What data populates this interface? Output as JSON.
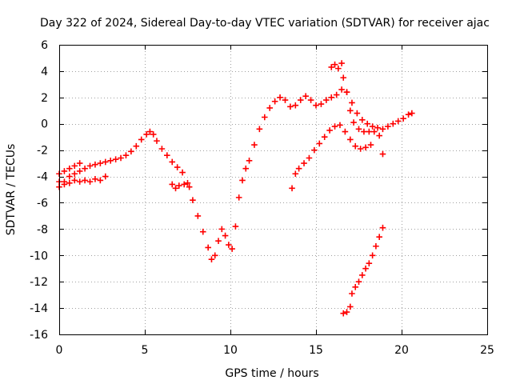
{
  "chart_data": {
    "type": "scatter",
    "title": "Day 322 of 2024, Sidereal Day-to-day VTEC variation (SDTVAR) for receiver ajac",
    "xlabel": "GPS time / hours",
    "ylabel": "SDTVAR / TECUs",
    "xlim": [
      0,
      25
    ],
    "ylim": [
      -16,
      6
    ],
    "xticks": [
      0,
      5,
      10,
      15,
      20,
      25
    ],
    "yticks": [
      -16,
      -14,
      -12,
      -10,
      -8,
      -6,
      -4,
      -2,
      0,
      2,
      4,
      6
    ],
    "grid": true,
    "marker": "+",
    "color": "#ff0000",
    "series": [
      {
        "points": [
          [
            0.0,
            -4.8
          ],
          [
            0.3,
            -4.4
          ],
          [
            0.6,
            -4.0
          ],
          [
            0.9,
            -3.8
          ],
          [
            1.2,
            -3.6
          ],
          [
            1.5,
            -3.4
          ],
          [
            1.8,
            -3.2
          ],
          [
            2.1,
            -3.1
          ],
          [
            2.4,
            -3.0
          ],
          [
            2.7,
            -2.9
          ],
          [
            3.0,
            -2.8
          ],
          [
            3.3,
            -2.7
          ],
          [
            3.6,
            -2.6
          ],
          [
            3.9,
            -2.4
          ],
          [
            4.2,
            -2.1
          ],
          [
            4.5,
            -1.7
          ],
          [
            4.8,
            -1.2
          ],
          [
            5.1,
            -0.8
          ],
          [
            5.3,
            -0.6
          ],
          [
            5.5,
            -0.8
          ],
          [
            5.7,
            -1.3
          ],
          [
            6.0,
            -1.9
          ],
          [
            6.3,
            -2.4
          ],
          [
            6.6,
            -2.9
          ],
          [
            6.9,
            -3.3
          ],
          [
            7.2,
            -3.7
          ],
          [
            7.5,
            -4.5
          ],
          [
            7.8,
            -5.8
          ],
          [
            8.1,
            -7.0
          ],
          [
            8.4,
            -8.2
          ],
          [
            8.7,
            -9.4
          ],
          [
            8.9,
            -10.3
          ],
          [
            9.1,
            -10.0
          ],
          [
            9.3,
            -8.9
          ],
          [
            9.5,
            -8.0
          ],
          [
            9.7,
            -8.5
          ],
          [
            9.9,
            -9.2
          ],
          [
            10.1,
            -9.5
          ],
          [
            10.3,
            -7.8
          ],
          [
            10.5,
            -5.6
          ],
          [
            10.7,
            -4.3
          ],
          [
            10.9,
            -3.4
          ],
          [
            11.1,
            -2.8
          ],
          [
            11.4,
            -1.6
          ],
          [
            11.7,
            -0.4
          ],
          [
            12.0,
            0.5
          ],
          [
            12.3,
            1.2
          ],
          [
            12.6,
            1.7
          ],
          [
            12.9,
            2.0
          ],
          [
            13.2,
            1.8
          ],
          [
            13.5,
            1.3
          ],
          [
            13.8,
            1.4
          ],
          [
            14.1,
            1.8
          ],
          [
            14.4,
            2.1
          ],
          [
            14.7,
            1.8
          ],
          [
            15.0,
            1.4
          ],
          [
            15.3,
            1.5
          ],
          [
            15.6,
            1.8
          ],
          [
            15.9,
            2.0
          ],
          [
            16.2,
            2.2
          ],
          [
            16.5,
            2.6
          ],
          [
            16.8,
            2.4
          ],
          [
            17.1,
            1.6
          ],
          [
            17.4,
            0.8
          ],
          [
            17.7,
            0.3
          ],
          [
            18.0,
            0.0
          ],
          [
            18.3,
            -0.2
          ],
          [
            18.6,
            -0.3
          ],
          [
            18.9,
            -0.4
          ],
          [
            19.2,
            -0.2
          ],
          [
            19.5,
            0.0
          ],
          [
            19.8,
            0.2
          ],
          [
            20.1,
            0.4
          ],
          [
            20.4,
            0.7
          ],
          [
            20.6,
            0.8
          ]
        ]
      },
      {
        "points": [
          [
            0.0,
            -4.4
          ],
          [
            0.3,
            -4.6
          ],
          [
            0.6,
            -4.5
          ],
          [
            0.9,
            -4.3
          ],
          [
            1.2,
            -4.4
          ],
          [
            1.5,
            -4.3
          ],
          [
            1.8,
            -4.4
          ],
          [
            2.1,
            -4.2
          ],
          [
            2.4,
            -4.3
          ],
          [
            2.7,
            -4.0
          ]
        ]
      },
      {
        "points": [
          [
            0.0,
            -3.8
          ],
          [
            0.3,
            -3.6
          ],
          [
            0.6,
            -3.4
          ],
          [
            0.9,
            -3.2
          ],
          [
            1.2,
            -3.0
          ]
        ]
      },
      {
        "points": [
          [
            6.6,
            -4.6
          ],
          [
            6.8,
            -4.9
          ],
          [
            7.0,
            -4.7
          ],
          [
            7.3,
            -4.6
          ],
          [
            7.6,
            -4.8
          ]
        ]
      },
      {
        "points": [
          [
            15.9,
            4.3
          ],
          [
            16.1,
            4.5
          ],
          [
            16.3,
            4.2
          ],
          [
            16.5,
            4.6
          ],
          [
            16.6,
            3.5
          ],
          [
            16.8,
            2.4
          ],
          [
            17.0,
            1.0
          ],
          [
            17.2,
            0.1
          ],
          [
            17.5,
            -0.4
          ],
          [
            17.8,
            -0.6
          ],
          [
            18.1,
            -0.6
          ],
          [
            18.4,
            -0.6
          ],
          [
            18.7,
            -0.9
          ]
        ]
      },
      {
        "points": [
          [
            13.6,
            -4.9
          ],
          [
            13.8,
            -3.8
          ],
          [
            14.0,
            -3.4
          ],
          [
            14.3,
            -3.0
          ],
          [
            14.6,
            -2.6
          ],
          [
            14.9,
            -2.0
          ],
          [
            15.2,
            -1.5
          ],
          [
            15.5,
            -1.0
          ],
          [
            15.8,
            -0.5
          ],
          [
            16.1,
            -0.2
          ],
          [
            16.4,
            -0.1
          ],
          [
            16.7,
            -0.6
          ],
          [
            17.0,
            -1.2
          ],
          [
            17.3,
            -1.7
          ],
          [
            17.6,
            -1.9
          ],
          [
            17.9,
            -1.8
          ],
          [
            18.2,
            -1.6
          ]
        ]
      },
      {
        "points": [
          [
            18.9,
            -2.3
          ]
        ]
      },
      {
        "points": [
          [
            16.6,
            -14.4
          ],
          [
            16.8,
            -14.3
          ],
          [
            17.0,
            -13.9
          ],
          [
            17.1,
            -12.9
          ],
          [
            17.3,
            -12.4
          ],
          [
            17.5,
            -12.0
          ],
          [
            17.7,
            -11.5
          ],
          [
            17.9,
            -11.0
          ],
          [
            18.1,
            -10.6
          ],
          [
            18.3,
            -10.0
          ],
          [
            18.5,
            -9.3
          ],
          [
            18.7,
            -8.6
          ],
          [
            18.9,
            -7.9
          ]
        ]
      }
    ]
  }
}
